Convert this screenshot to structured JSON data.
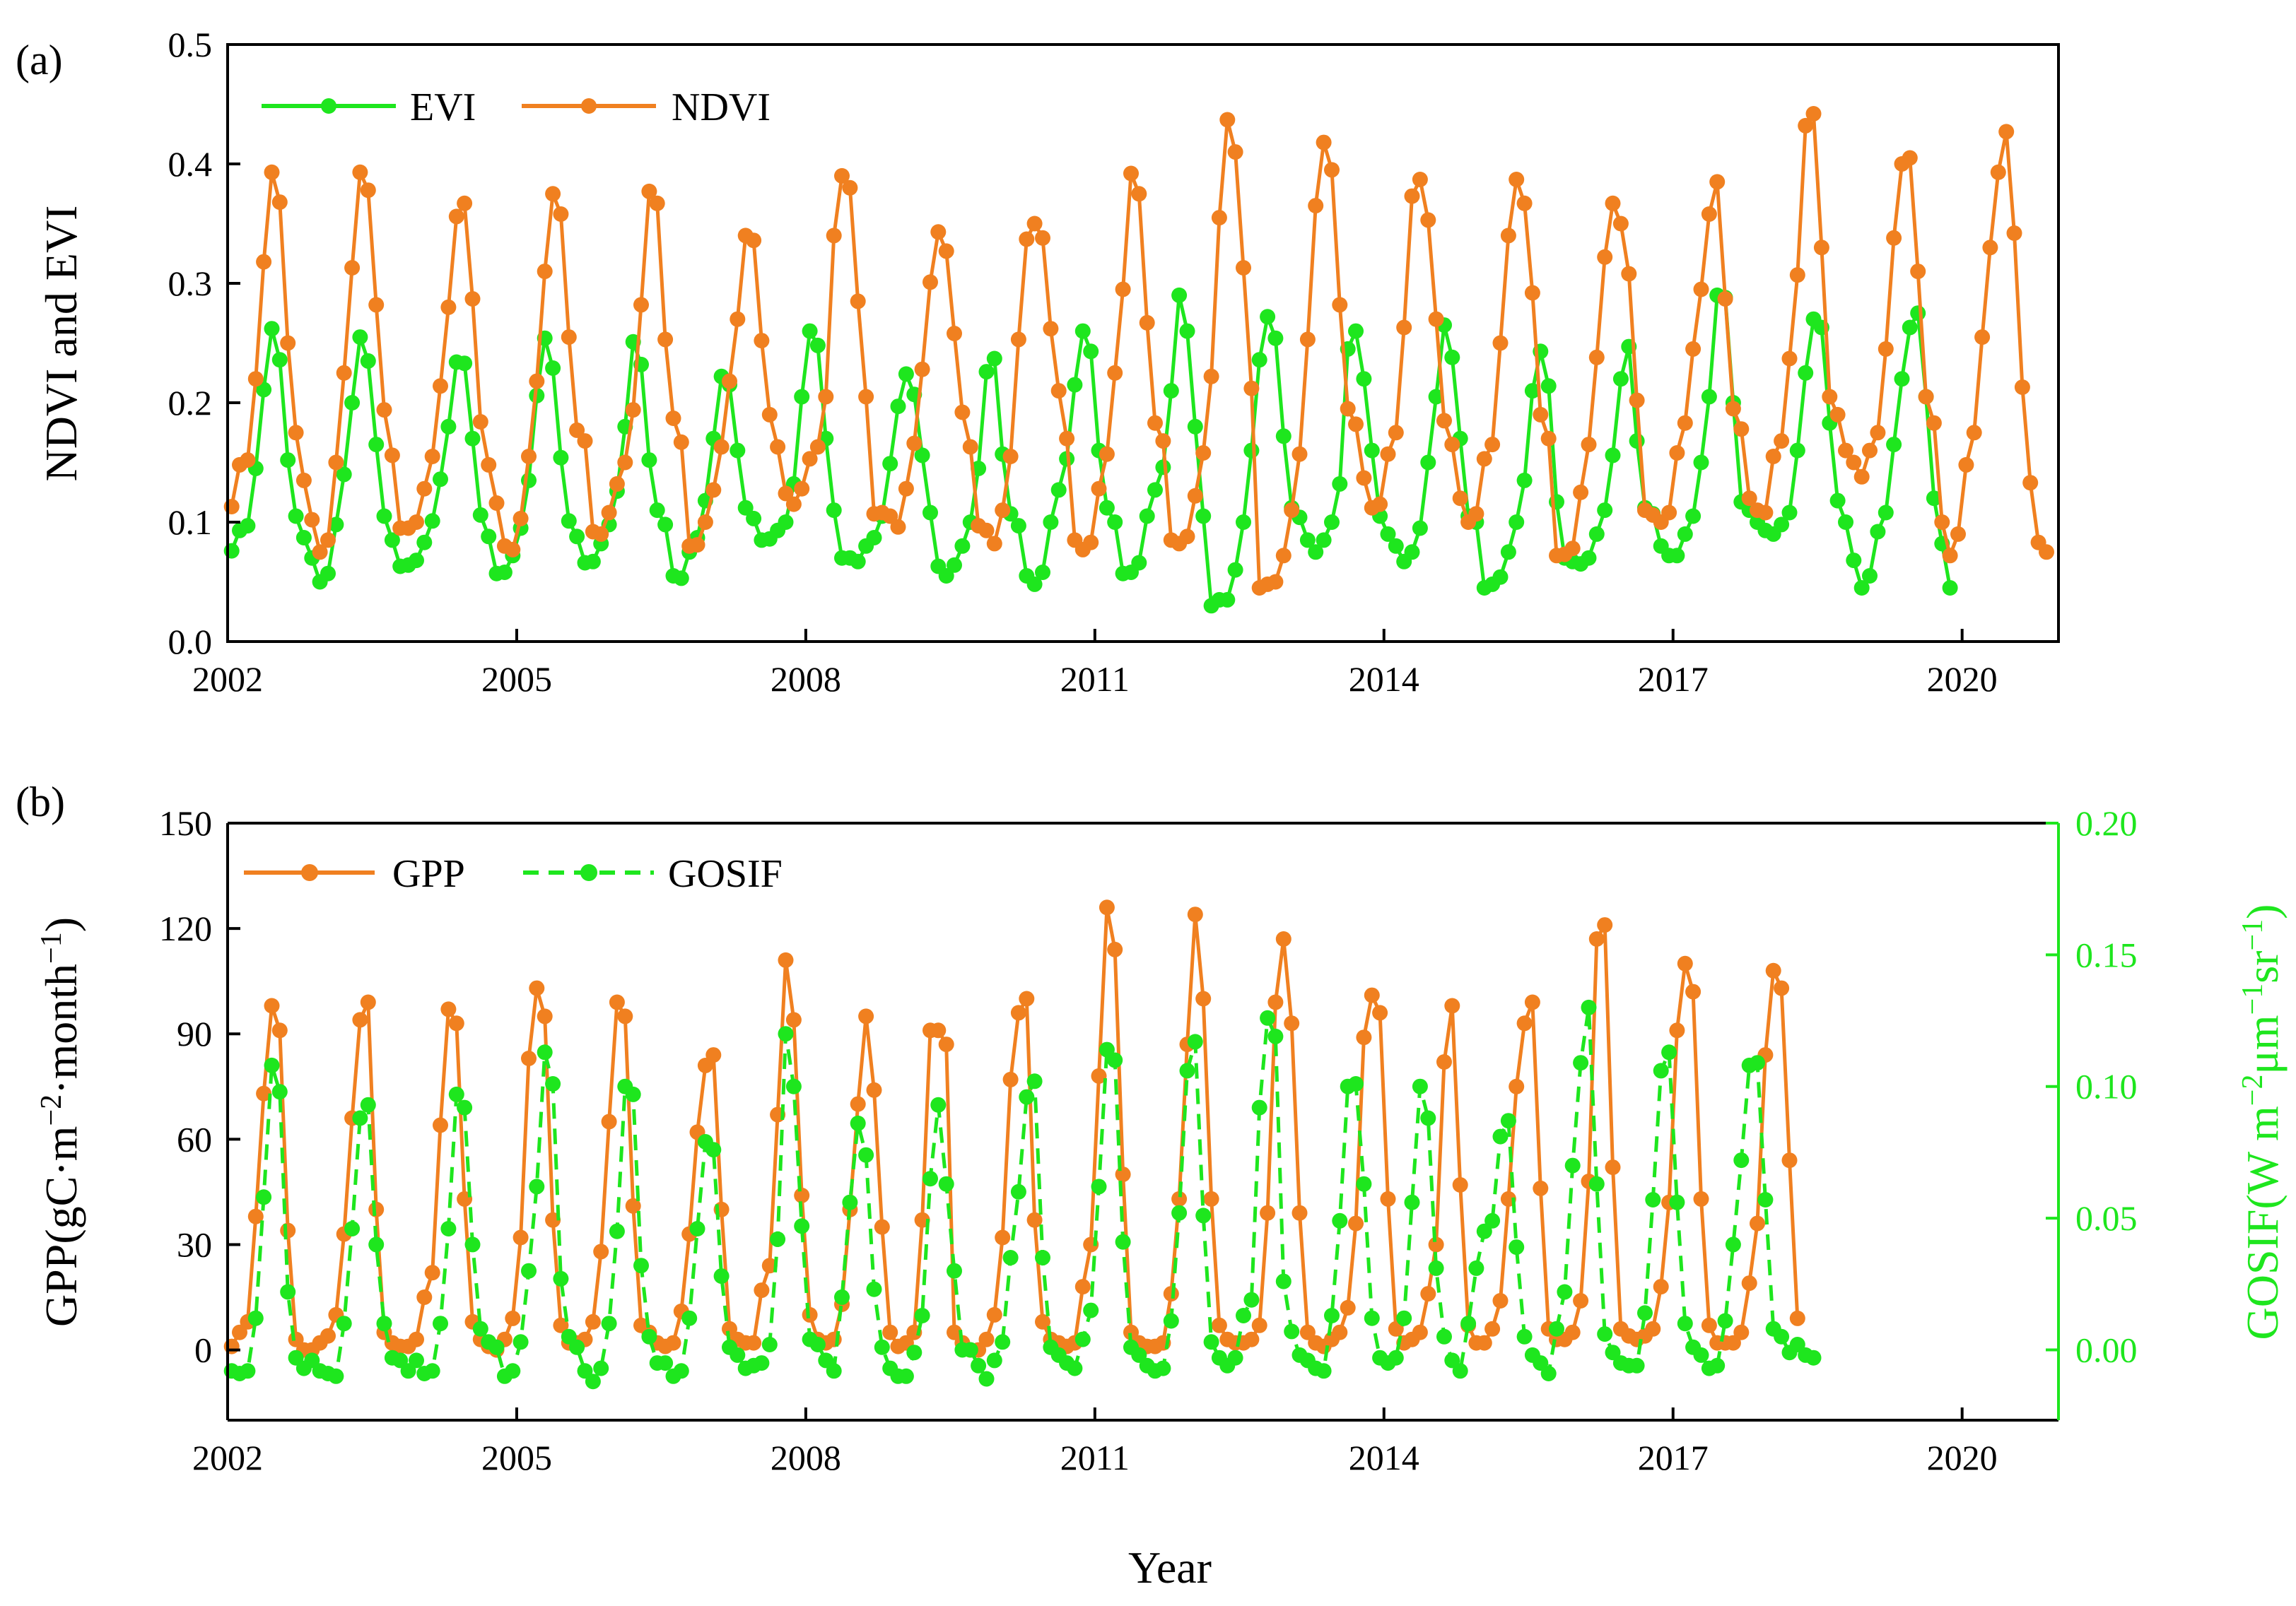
{
  "figure": {
    "xlabel": "Year"
  },
  "colors": {
    "evi": "#1ee61e",
    "ndvi": "#f08020",
    "gpp": "#f08020",
    "gosif": "#1ee61e",
    "axis": "#000000",
    "right_axis": "#1ee61e"
  },
  "chart_data": [
    {
      "type": "line",
      "panel_label": "(a)",
      "xlabel": "",
      "ylabel": "NDVI and EVI",
      "xlim": [
        2002.0,
        2021.0
      ],
      "ylim": [
        0.0,
        0.5
      ],
      "xticks": [
        2002,
        2005,
        2008,
        2011,
        2014,
        2017,
        2020
      ],
      "xtick_labels": [
        "2002",
        "2005",
        "2008",
        "2011",
        "2014",
        "2017",
        "2020"
      ],
      "yticks": [
        0.0,
        0.1,
        0.2,
        0.3,
        0.4,
        0.5
      ],
      "ytick_labels": [
        "0.0",
        "0.1",
        "0.2",
        "0.3",
        "0.4",
        "0.5"
      ],
      "legend_position": "top-left",
      "x_unit": "monthly, first point at 2002 + 1/24",
      "series": [
        {
          "name": "EVI",
          "color": "#1ee61e",
          "style": "solid",
          "values": [
            0.076,
            0.093,
            0.097,
            0.145,
            0.211,
            0.262,
            0.236,
            0.152,
            0.105,
            0.087,
            0.07,
            0.05,
            0.057,
            0.098,
            0.14,
            0.2,
            0.255,
            0.235,
            0.165,
            0.105,
            0.085,
            0.063,
            0.064,
            0.068,
            0.083,
            0.101,
            0.136,
            0.18,
            0.234,
            0.233,
            0.17,
            0.106,
            0.088,
            0.057,
            0.058,
            0.072,
            0.095,
            0.135,
            0.206,
            0.254,
            0.229,
            0.154,
            0.101,
            0.088,
            0.066,
            0.067,
            0.082,
            0.098,
            0.126,
            0.18,
            0.251,
            0.232,
            0.152,
            0.11,
            0.098,
            0.055,
            0.053,
            0.075,
            0.087,
            0.118,
            0.17,
            0.222,
            0.215,
            0.16,
            0.112,
            0.103,
            0.085,
            0.086,
            0.093,
            0.1,
            0.132,
            0.205,
            0.26,
            0.248,
            0.17,
            0.11,
            0.07,
            0.07,
            0.067,
            0.08,
            0.087,
            0.105,
            0.149,
            0.197,
            0.224,
            0.207,
            0.156,
            0.108,
            0.063,
            0.055,
            0.064,
            0.08,
            0.1,
            0.145,
            0.226,
            0.237,
            0.157,
            0.107,
            0.097,
            0.055,
            0.048,
            0.058,
            0.1,
            0.127,
            0.153,
            0.215,
            0.26,
            0.243,
            0.16,
            0.112,
            0.1,
            0.057,
            0.058,
            0.066,
            0.105,
            0.127,
            0.146,
            0.21,
            0.29,
            0.26,
            0.18,
            0.105,
            0.03,
            0.035,
            0.035,
            0.06,
            0.1,
            0.16,
            0.236,
            0.272,
            0.254,
            0.172,
            0.112,
            0.104,
            0.085,
            0.075,
            0.085,
            0.1,
            0.132,
            0.245,
            0.26,
            0.22,
            0.16,
            0.105,
            0.09,
            0.08,
            0.067,
            0.075,
            0.095,
            0.15,
            0.205,
            0.265,
            0.238,
            0.17,
            0.105,
            0.1,
            0.045,
            0.048,
            0.054,
            0.075,
            0.1,
            0.135,
            0.21,
            0.243,
            0.214,
            0.117,
            0.07,
            0.067,
            0.065,
            0.07,
            0.09,
            0.11,
            0.156,
            0.22,
            0.247,
            0.168,
            0.112,
            0.107,
            0.08,
            0.072,
            0.072,
            0.09,
            0.105,
            0.15,
            0.205,
            0.29,
            0.288,
            0.2,
            0.117,
            0.11,
            0.1,
            0.093,
            0.09,
            0.098,
            0.108,
            0.16,
            0.225,
            0.27,
            0.263,
            0.183,
            0.118,
            0.1,
            0.068,
            0.045,
            0.055,
            0.092,
            0.108,
            0.165,
            0.22,
            0.263,
            0.275,
            0.205,
            0.12,
            0.082,
            0.045
          ]
        },
        {
          "name": "NDVI",
          "color": "#f08020",
          "style": "solid",
          "values": [
            0.113,
            0.148,
            0.152,
            0.22,
            0.318,
            0.393,
            0.368,
            0.25,
            0.175,
            0.135,
            0.102,
            0.075,
            0.085,
            0.15,
            0.225,
            0.313,
            0.393,
            0.378,
            0.282,
            0.194,
            0.156,
            0.095,
            0.095,
            0.1,
            0.128,
            0.155,
            0.214,
            0.28,
            0.356,
            0.367,
            0.287,
            0.184,
            0.148,
            0.116,
            0.08,
            0.077,
            0.103,
            0.155,
            0.218,
            0.31,
            0.375,
            0.358,
            0.255,
            0.177,
            0.168,
            0.092,
            0.09,
            0.108,
            0.132,
            0.15,
            0.194,
            0.282,
            0.377,
            0.367,
            0.253,
            0.187,
            0.167,
            0.08,
            0.081,
            0.1,
            0.127,
            0.163,
            0.218,
            0.27,
            0.34,
            0.336,
            0.252,
            0.19,
            0.163,
            0.124,
            0.115,
            0.128,
            0.153,
            0.163,
            0.205,
            0.34,
            0.39,
            0.38,
            0.285,
            0.205,
            0.107,
            0.108,
            0.105,
            0.096,
            0.128,
            0.166,
            0.228,
            0.301,
            0.343,
            0.327,
            0.258,
            0.192,
            0.163,
            0.097,
            0.093,
            0.082,
            0.11,
            0.155,
            0.253,
            0.337,
            0.35,
            0.338,
            0.262,
            0.21,
            0.17,
            0.085,
            0.077,
            0.083,
            0.128,
            0.157,
            0.225,
            0.295,
            0.392,
            0.375,
            0.267,
            0.183,
            0.168,
            0.085,
            0.082,
            0.088,
            0.122,
            0.158,
            0.222,
            0.355,
            0.437,
            0.41,
            0.313,
            0.212,
            0.045,
            0.048,
            0.05,
            0.072,
            0.11,
            0.157,
            0.253,
            0.365,
            0.418,
            0.395,
            0.282,
            0.195,
            0.182,
            0.137,
            0.112,
            0.115,
            0.157,
            0.175,
            0.263,
            0.373,
            0.387,
            0.353,
            0.27,
            0.185,
            0.165,
            0.12,
            0.1,
            0.107,
            0.153,
            0.165,
            0.25,
            0.34,
            0.387,
            0.367,
            0.292,
            0.19,
            0.17,
            0.072,
            0.073,
            0.078,
            0.125,
            0.165,
            0.238,
            0.322,
            0.367,
            0.35,
            0.308,
            0.202,
            0.11,
            0.106,
            0.1,
            0.108,
            0.158,
            0.183,
            0.245,
            0.295,
            0.358,
            0.385,
            0.287,
            0.195,
            0.178,
            0.12,
            0.11,
            0.108,
            0.155,
            0.168,
            0.237,
            0.307,
            0.432,
            0.442,
            0.33,
            0.205,
            0.19,
            0.16,
            0.15,
            0.138,
            0.16,
            0.175,
            0.245,
            0.338,
            0.4,
            0.405,
            0.31,
            0.205,
            0.183,
            0.1,
            0.072,
            0.09,
            0.148,
            0.175,
            0.255,
            0.33,
            0.393,
            0.427,
            0.342,
            0.213,
            0.133,
            0.083,
            0.075
          ]
        }
      ]
    },
    {
      "type": "line",
      "panel_label": "(b)",
      "xlabel": "Year",
      "ylabel": "GPP(gC·m−2·month−1)",
      "ylabel_parts": [
        "GPP(gC·m",
        "−2",
        "·month",
        "−1",
        ")"
      ],
      "y2label": "GOSIF(W m−2μm−1sr−1)",
      "y2label_parts": [
        "GOSIF(W m",
        "−2",
        "μm",
        "−1",
        "sr",
        "−1",
        ")"
      ],
      "xlim": [
        2002.0,
        2021.0
      ],
      "ylim": [
        -20,
        150
      ],
      "y2lim": [
        -0.0267,
        0.2
      ],
      "xticks": [
        2002,
        2005,
        2008,
        2011,
        2014,
        2017,
        2020
      ],
      "xtick_labels": [
        "2002",
        "2005",
        "2008",
        "2011",
        "2014",
        "2017",
        "2020"
      ],
      "yticks": [
        0,
        30,
        60,
        90,
        120,
        150
      ],
      "ytick_labels": [
        "0",
        "30",
        "60",
        "90",
        "120",
        "150"
      ],
      "y2ticks": [
        0.0,
        0.05,
        0.1,
        0.15,
        0.2
      ],
      "y2tick_labels": [
        "0.00",
        "0.05",
        "0.10",
        "0.15",
        "0.20"
      ],
      "legend_position": "top-left",
      "x_unit": "monthly, first point at 2002 + 1/24",
      "series": [
        {
          "name": "GPP",
          "axis": "left",
          "color": "#f08020",
          "style": "solid",
          "values": [
            1,
            5,
            8,
            38,
            73,
            98,
            91,
            34,
            3,
            0,
            0,
            2,
            4,
            10,
            33,
            66,
            94,
            99,
            40,
            5,
            2,
            1,
            1,
            3,
            15,
            22,
            64,
            97,
            93,
            43,
            8,
            3,
            1,
            0,
            3,
            9,
            32,
            83,
            103,
            95,
            37,
            7,
            2,
            2,
            3,
            8,
            28,
            65,
            99,
            95,
            41,
            7,
            5,
            2,
            1,
            2,
            11,
            33,
            62,
            81,
            84,
            40,
            6,
            3,
            2,
            2,
            17,
            24,
            67,
            111,
            94,
            44,
            10,
            3,
            2,
            3,
            13,
            40,
            70,
            95,
            74,
            35,
            5,
            1,
            2,
            5,
            37,
            91,
            91,
            87,
            5,
            2,
            0,
            0,
            3,
            10,
            32,
            77,
            96,
            100,
            37,
            8,
            3,
            2,
            1,
            2,
            18,
            30,
            78,
            126,
            114,
            50,
            5,
            2,
            1,
            1,
            2,
            16,
            43,
            87,
            124,
            100,
            43,
            7,
            3,
            2,
            2,
            3,
            7,
            39,
            99,
            117,
            93,
            39,
            5,
            2,
            1,
            3,
            5,
            12,
            36,
            89,
            101,
            96,
            43,
            6,
            2,
            3,
            5,
            16,
            30,
            82,
            98,
            47,
            7,
            2,
            2,
            6,
            14,
            43,
            75,
            93,
            99,
            46,
            6,
            3,
            3,
            5,
            14,
            48,
            117,
            121,
            52,
            6,
            4,
            3,
            4,
            6,
            18,
            42,
            91,
            110,
            102,
            43,
            7,
            2,
            2,
            2,
            5,
            19,
            36,
            84,
            108,
            103,
            54,
            9
          ]
        },
        {
          "name": "GOSIF",
          "axis": "right",
          "color": "#1ee61e",
          "style": "dashed",
          "values": [
            -0.008,
            -0.009,
            -0.008,
            0.012,
            0.058,
            0.108,
            0.098,
            0.022,
            -0.003,
            -0.007,
            -0.004,
            -0.008,
            -0.009,
            -0.01,
            0.01,
            0.046,
            0.088,
            0.093,
            0.04,
            0.01,
            -0.003,
            -0.004,
            -0.008,
            -0.004,
            -0.009,
            -0.008,
            0.01,
            0.046,
            0.097,
            0.092,
            0.04,
            0.008,
            0.003,
            0.001,
            -0.01,
            -0.008,
            0.003,
            0.03,
            0.062,
            0.113,
            0.101,
            0.027,
            0.005,
            0.001,
            -0.008,
            -0.012,
            -0.007,
            0.01,
            0.045,
            0.1,
            0.097,
            0.032,
            0.005,
            -0.005,
            -0.005,
            -0.01,
            -0.008,
            0.012,
            0.046,
            0.079,
            0.076,
            0.028,
            0.001,
            -0.002,
            -0.007,
            -0.006,
            -0.005,
            0.002,
            0.042,
            0.12,
            0.1,
            0.047,
            0.004,
            0.002,
            -0.004,
            -0.008,
            0.02,
            0.056,
            0.086,
            0.074,
            0.023,
            0.001,
            -0.007,
            -0.01,
            -0.01,
            -0.001,
            0.013,
            0.065,
            0.093,
            0.063,
            0.03,
            0,
            0,
            -0.006,
            -0.011,
            -0.004,
            0.003,
            0.035,
            0.06,
            0.096,
            0.102,
            0.035,
            0.001,
            -0.002,
            -0.005,
            -0.007,
            0.004,
            0.015,
            0.062,
            0.114,
            0.11,
            0.041,
            0.001,
            -0.002,
            -0.006,
            -0.008,
            -0.007,
            0.011,
            0.052,
            0.106,
            0.117,
            0.051,
            0.003,
            -0.003,
            -0.006,
            -0.003,
            0.013,
            0.019,
            0.092,
            0.126,
            0.119,
            0.026,
            0.007,
            -0.002,
            -0.004,
            -0.007,
            -0.008,
            0.013,
            0.049,
            0.1,
            0.101,
            0.063,
            0.012,
            -0.003,
            -0.005,
            -0.003,
            0.012,
            0.056,
            0.1,
            0.088,
            0.031,
            0.005,
            -0.004,
            -0.008,
            0.01,
            0.031,
            0.045,
            0.049,
            0.081,
            0.087,
            0.039,
            0.005,
            -0.002,
            -0.005,
            -0.009,
            0.008,
            0.022,
            0.07,
            0.109,
            0.13,
            0.063,
            0.006,
            -0.001,
            -0.005,
            -0.006,
            -0.006,
            0.014,
            0.057,
            0.106,
            0.113,
            0.056,
            0.01,
            0.001,
            -0.002,
            -0.007,
            -0.006,
            0.011,
            0.04,
            0.072,
            0.108,
            0.109,
            0.057,
            0.008,
            0.005,
            -0.001,
            0.002,
            -0.002,
            -0.003
          ]
        }
      ]
    }
  ]
}
